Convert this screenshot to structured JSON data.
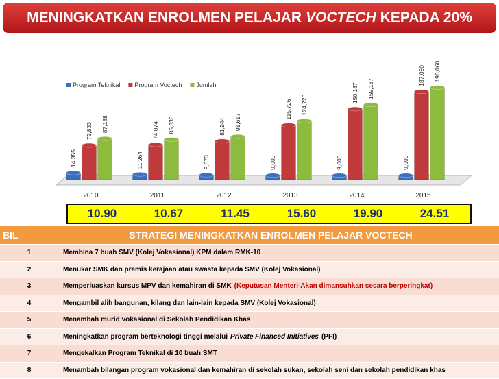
{
  "banner": {
    "before": "MENINGKATKAN ENROLMEN PELAJAR",
    "italic": "VOCTECH",
    "after": "KEPADA 20%"
  },
  "chart_data": {
    "type": "bar",
    "categories": [
      "2010",
      "2011",
      "2012",
      "2013",
      "2014",
      "2015"
    ],
    "series": [
      {
        "name": "Program Teknikal",
        "color": "#3a6fc0",
        "values": [
          14355,
          11264,
          9673,
          9000,
          9000,
          9000
        ],
        "value_labels": [
          "14,355",
          "11,264",
          "9,673",
          "9,000",
          "9,000",
          "9,000"
        ]
      },
      {
        "name": "Program Voctech",
        "color": "#c0393b",
        "values": [
          72833,
          74074,
          81944,
          115726,
          150187,
          187060
        ],
        "value_labels": [
          "72,833",
          "74,074",
          "81,944",
          "115,726",
          "150,187",
          "187,060"
        ]
      },
      {
        "name": "Jumlah",
        "color": "#8dbb3e",
        "values": [
          87188,
          85338,
          91617,
          124726,
          159187,
          196060
        ],
        "value_labels": [
          "87,188",
          "85,338",
          "91,617",
          "124,726",
          "159,187",
          "196,060"
        ]
      }
    ],
    "ylim": [
      0,
      210000
    ],
    "legend": "top-left"
  },
  "percentages": [
    "10.90",
    "10.67",
    "11.45",
    "15.60",
    "19.90",
    "24.51"
  ],
  "table": {
    "header": [
      "BIL",
      "STRATEGI MENINGKATKAN ENROLMEN PELAJAR  VOCTECH"
    ],
    "rows": [
      {
        "no": "1",
        "parts": [
          {
            "text": "Membina 7 buah  SMV (Kolej Vokasional)  KPM dalam RMK-10"
          }
        ]
      },
      {
        "no": "2",
        "parts": [
          {
            "text": "Menukar  SMK dan premis kerajaan  atau swasta kepada SMV (Kolej Vokasional)"
          }
        ]
      },
      {
        "no": "3",
        "parts": [
          {
            "text": "Memperluaskan kursus MPV dan  kemahiran di SMK"
          },
          {
            "text": "(Keputusan Menteri-Akan dimansuhkan secara berperingkat)",
            "style": "red"
          }
        ]
      },
      {
        "no": "4",
        "parts": [
          {
            "text": "Mengambil alih bangunan, kilang dan lain-lain kepada SMV (Kolej Vokasional)"
          }
        ]
      },
      {
        "no": "5",
        "parts": [
          {
            "text": "Menambah murid vokasional di Sekolah Pendidikan Khas"
          }
        ]
      },
      {
        "no": "6",
        "parts": [
          {
            "text": "Meningkatkan program berteknologi tinggi melalui"
          },
          {
            "text": "Private Financed Initiatives",
            "style": "italic"
          },
          {
            "text": "(PFI)"
          }
        ]
      },
      {
        "no": "7",
        "parts": [
          {
            "text": "Mengekalkan  Program Teknikal di  10 buah SMT"
          }
        ]
      },
      {
        "no": "8",
        "parts": [
          {
            "text": "Menambah bilangan program vokasional dan kemahiran  di sekolah sukan, sekolah seni dan sekolah pendidikan khas"
          }
        ]
      }
    ]
  }
}
